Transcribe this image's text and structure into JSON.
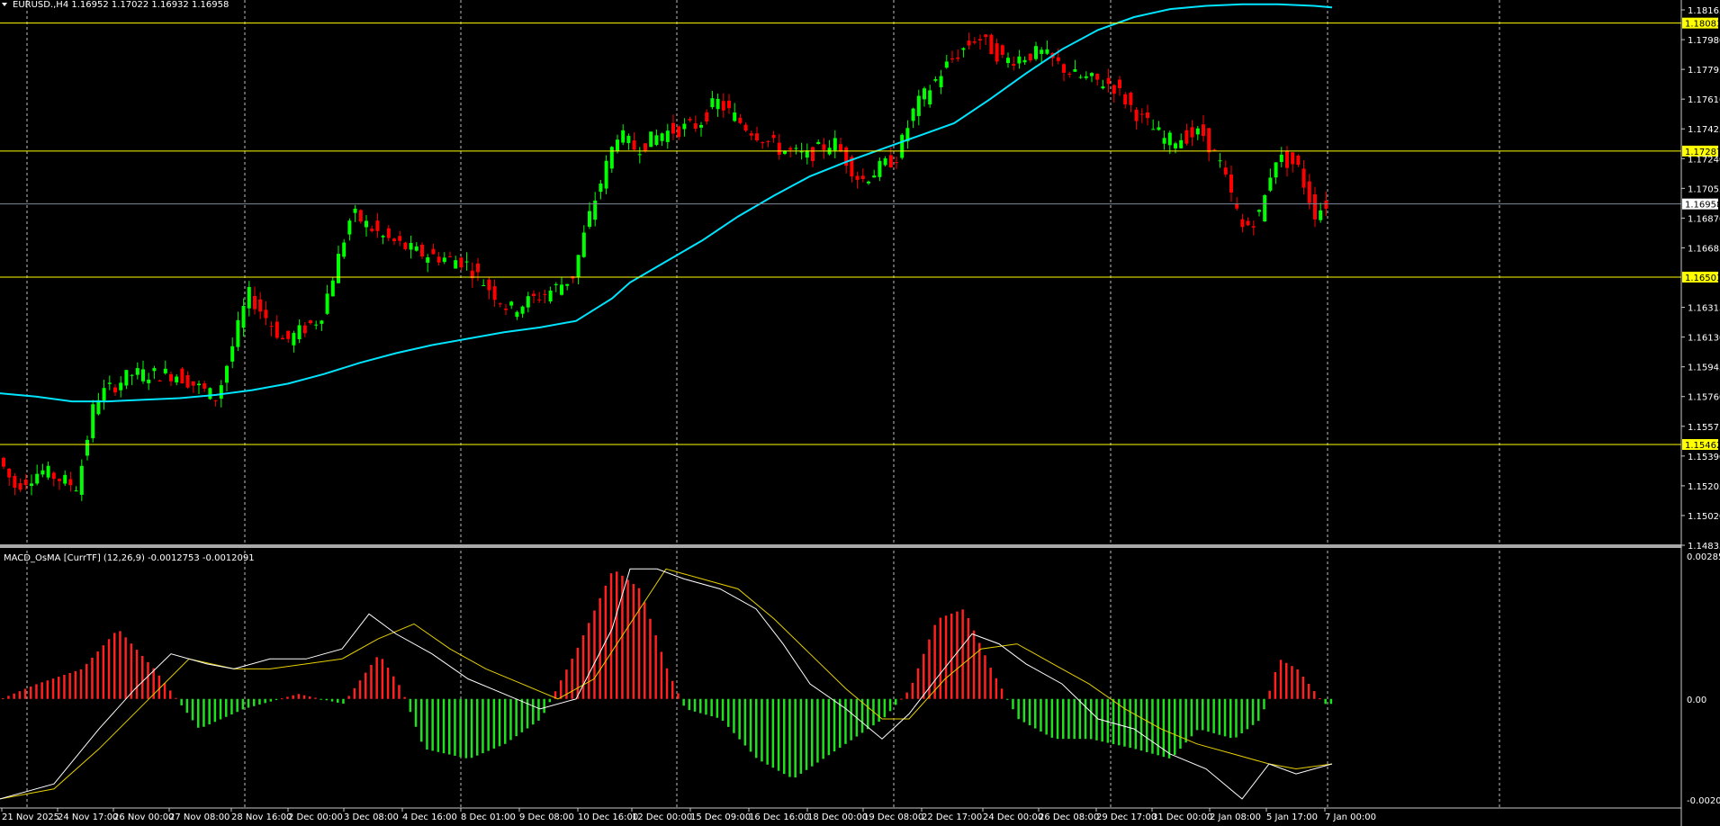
{
  "main_chart": {
    "symbol_header": "EURUSD.,H4  1.16952 1.17022 1.16932 1.16958",
    "price_labels": [
      "1.18165",
      "1.17980",
      "1.17795",
      "1.17610",
      "1.17425",
      "1.17240",
      "1.17055",
      "1.16870",
      "1.16685",
      "1.16315",
      "1.16130",
      "1.15945",
      "1.15760",
      "1.15575",
      "1.15390",
      "1.15205",
      "1.15020",
      "1.14835"
    ],
    "levels": [
      {
        "label": "1.18083",
        "price": 1.18083,
        "kind": "resistance"
      },
      {
        "label": "1.17287",
        "price": 1.17287,
        "kind": "resistance"
      },
      {
        "label": "1.16958",
        "price": 1.16958,
        "kind": "bid"
      },
      {
        "label": "1.16503",
        "price": 1.16503,
        "kind": "support"
      },
      {
        "label": "1.15462",
        "price": 1.15462,
        "kind": "support"
      }
    ],
    "time_labels": [
      "21 Nov 2025",
      "24 Nov 17:00",
      "26 Nov 00:00",
      "27 Nov 08:00",
      "28 Nov 16:00",
      "2 Dec 00:00",
      "3 Dec 08:00",
      "4 Dec 16:00",
      "8 Dec 01:00",
      "9 Dec 08:00",
      "10 Dec 16:00",
      "12 Dec 00:00",
      "15 Dec 09:00",
      "16 Dec 16:00",
      "18 Dec 00:00",
      "19 Dec 08:00",
      "22 Dec 17:00",
      "24 Dec 00:00",
      "26 Dec 08:00",
      "29 Dec 17:00",
      "31 Dec 00:00",
      "2 Jan 08:00",
      "5 Jan 17:00",
      "7 Jan 00:00"
    ],
    "ma_points": [
      [
        0,
        1.1578
      ],
      [
        40,
        1.1576
      ],
      [
        80,
        1.1573
      ],
      [
        120,
        1.1573
      ],
      [
        160,
        1.1574
      ],
      [
        200,
        1.1575
      ],
      [
        240,
        1.1577
      ],
      [
        280,
        1.158
      ],
      [
        320,
        1.1584
      ],
      [
        360,
        1.159
      ],
      [
        400,
        1.1597
      ],
      [
        440,
        1.1603
      ],
      [
        480,
        1.1608
      ],
      [
        520,
        1.1612
      ],
      [
        560,
        1.1616
      ],
      [
        600,
        1.1619
      ],
      [
        640,
        1.1623
      ],
      [
        660,
        1.163
      ],
      [
        680,
        1.1637
      ],
      [
        700,
        1.1647
      ],
      [
        740,
        1.166
      ],
      [
        780,
        1.1673
      ],
      [
        820,
        1.1688
      ],
      [
        860,
        1.1701
      ],
      [
        900,
        1.1713
      ],
      [
        940,
        1.1722
      ],
      [
        980,
        1.173
      ],
      [
        1020,
        1.1738
      ],
      [
        1060,
        1.1746
      ],
      [
        1100,
        1.1761
      ],
      [
        1140,
        1.1777
      ],
      [
        1180,
        1.1792
      ],
      [
        1220,
        1.1804
      ],
      [
        1260,
        1.1812
      ],
      [
        1300,
        1.1817
      ],
      [
        1340,
        1.1819
      ],
      [
        1380,
        1.182
      ],
      [
        1420,
        1.182
      ],
      [
        1460,
        1.1819
      ],
      [
        1480,
        1.1818
      ]
    ],
    "colors": {
      "up": "#00ff00",
      "down": "#ff0000",
      "ma": "#00e5ff",
      "level": "#ffff00",
      "bid_line": "#7f8a99",
      "grid": "#c0c0c0"
    }
  },
  "indicator": {
    "title": "MACD_OsMA [CurrTF] (12,26,9) -0.0012753 -0.0012091",
    "scale_labels": [
      "0.002857",
      "0.00",
      "-0.002092"
    ],
    "max": 0.002857,
    "min": -0.002092,
    "colors": {
      "hist_up": "#ff2020",
      "hist_down": "#20e020",
      "macd": "#ffffff",
      "signal": "#e6d000"
    }
  }
}
